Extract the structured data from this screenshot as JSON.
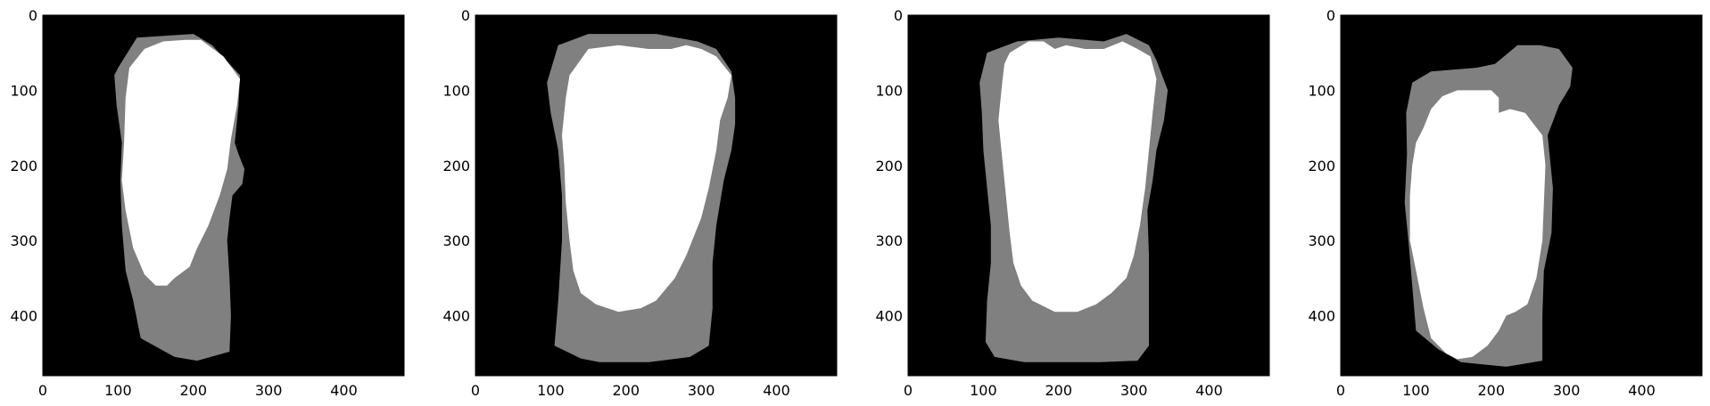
{
  "figure": {
    "panel_count": 4,
    "background_color": "#000000",
    "outer_mask_color": "#808080",
    "inner_mask_color": "#ffffff",
    "image_size": [
      480,
      480
    ]
  },
  "axes": {
    "x_ticks": [
      "0",
      "100",
      "200",
      "300",
      "400"
    ],
    "y_ticks": [
      "0",
      "100",
      "200",
      "300",
      "400"
    ],
    "x_range": [
      0,
      480
    ],
    "y_range": [
      480,
      0
    ]
  },
  "panels": [
    {
      "outer_polygon": [
        [
          100,
          70
        ],
        [
          125,
          30
        ],
        [
          200,
          25
        ],
        [
          225,
          40
        ],
        [
          262,
          80
        ],
        [
          260,
          120
        ],
        [
          255,
          170
        ],
        [
          260,
          185
        ],
        [
          268,
          205
        ],
        [
          265,
          225
        ],
        [
          252,
          240
        ],
        [
          248,
          270
        ],
        [
          245,
          300
        ],
        [
          248,
          350
        ],
        [
          250,
          400
        ],
        [
          248,
          448
        ],
        [
          205,
          460
        ],
        [
          175,
          455
        ],
        [
          130,
          430
        ],
        [
          120,
          380
        ],
        [
          110,
          340
        ],
        [
          105,
          280
        ],
        [
          103,
          220
        ],
        [
          105,
          170
        ],
        [
          98,
          120
        ],
        [
          95,
          80
        ]
      ],
      "inner_polygon": [
        [
          135,
          45
        ],
        [
          160,
          35
        ],
        [
          190,
          33
        ],
        [
          210,
          33
        ],
        [
          240,
          55
        ],
        [
          262,
          85
        ],
        [
          258,
          120
        ],
        [
          250,
          165
        ],
        [
          245,
          205
        ],
        [
          235,
          240
        ],
        [
          220,
          280
        ],
        [
          205,
          310
        ],
        [
          195,
          335
        ],
        [
          175,
          350
        ],
        [
          165,
          360
        ],
        [
          150,
          360
        ],
        [
          135,
          345
        ],
        [
          120,
          310
        ],
        [
          110,
          260
        ],
        [
          105,
          220
        ],
        [
          108,
          170
        ],
        [
          110,
          110
        ],
        [
          115,
          70
        ]
      ]
    },
    {
      "outer_polygon": [
        [
          110,
          40
        ],
        [
          150,
          25
        ],
        [
          240,
          25
        ],
        [
          295,
          35
        ],
        [
          320,
          45
        ],
        [
          340,
          75
        ],
        [
          345,
          110
        ],
        [
          345,
          145
        ],
        [
          340,
          180
        ],
        [
          330,
          220
        ],
        [
          320,
          280
        ],
        [
          315,
          330
        ],
        [
          315,
          390
        ],
        [
          310,
          440
        ],
        [
          285,
          455
        ],
        [
          230,
          462
        ],
        [
          165,
          462
        ],
        [
          140,
          457
        ],
        [
          105,
          440
        ],
        [
          110,
          380
        ],
        [
          115,
          300
        ],
        [
          115,
          240
        ],
        [
          110,
          180
        ],
        [
          100,
          130
        ],
        [
          95,
          90
        ]
      ],
      "inner_polygon": [
        [
          150,
          45
        ],
        [
          190,
          40
        ],
        [
          230,
          45
        ],
        [
          260,
          45
        ],
        [
          280,
          40
        ],
        [
          300,
          45
        ],
        [
          320,
          55
        ],
        [
          340,
          80
        ],
        [
          335,
          110
        ],
        [
          325,
          140
        ],
        [
          320,
          180
        ],
        [
          310,
          230
        ],
        [
          300,
          270
        ],
        [
          280,
          320
        ],
        [
          265,
          350
        ],
        [
          240,
          380
        ],
        [
          220,
          390
        ],
        [
          190,
          395
        ],
        [
          160,
          385
        ],
        [
          140,
          370
        ],
        [
          130,
          340
        ],
        [
          125,
          300
        ],
        [
          120,
          250
        ],
        [
          118,
          200
        ],
        [
          115,
          160
        ],
        [
          120,
          110
        ],
        [
          125,
          80
        ]
      ]
    },
    {
      "outer_polygon": [
        [
          105,
          50
        ],
        [
          145,
          35
        ],
        [
          200,
          30
        ],
        [
          260,
          35
        ],
        [
          290,
          25
        ],
        [
          320,
          40
        ],
        [
          330,
          60
        ],
        [
          345,
          100
        ],
        [
          340,
          140
        ],
        [
          330,
          180
        ],
        [
          325,
          220
        ],
        [
          318,
          260
        ],
        [
          320,
          320
        ],
        [
          320,
          390
        ],
        [
          320,
          440
        ],
        [
          305,
          460
        ],
        [
          255,
          462
        ],
        [
          210,
          462
        ],
        [
          155,
          462
        ],
        [
          115,
          455
        ],
        [
          103,
          435
        ],
        [
          105,
          380
        ],
        [
          110,
          330
        ],
        [
          110,
          280
        ],
        [
          105,
          230
        ],
        [
          100,
          180
        ],
        [
          98,
          130
        ],
        [
          95,
          90
        ]
      ],
      "inner_polygon": [
        [
          135,
          50
        ],
        [
          160,
          35
        ],
        [
          180,
          35
        ],
        [
          195,
          45
        ],
        [
          210,
          40
        ],
        [
          235,
          45
        ],
        [
          260,
          45
        ],
        [
          285,
          35
        ],
        [
          305,
          45
        ],
        [
          322,
          55
        ],
        [
          330,
          85
        ],
        [
          325,
          130
        ],
        [
          320,
          180
        ],
        [
          315,
          230
        ],
        [
          308,
          280
        ],
        [
          300,
          320
        ],
        [
          290,
          350
        ],
        [
          270,
          370
        ],
        [
          250,
          385
        ],
        [
          225,
          395
        ],
        [
          195,
          395
        ],
        [
          165,
          380
        ],
        [
          150,
          360
        ],
        [
          140,
          330
        ],
        [
          135,
          290
        ],
        [
          130,
          240
        ],
        [
          125,
          190
        ],
        [
          120,
          140
        ],
        [
          125,
          90
        ],
        [
          128,
          65
        ]
      ]
    },
    {
      "outer_polygon": [
        [
          95,
          90
        ],
        [
          120,
          75
        ],
        [
          180,
          70
        ],
        [
          205,
          65
        ],
        [
          235,
          40
        ],
        [
          265,
          40
        ],
        [
          290,
          45
        ],
        [
          308,
          70
        ],
        [
          305,
          95
        ],
        [
          290,
          120
        ],
        [
          275,
          160
        ],
        [
          282,
          230
        ],
        [
          280,
          290
        ],
        [
          270,
          340
        ],
        [
          268,
          400
        ],
        [
          268,
          460
        ],
        [
          220,
          468
        ],
        [
          160,
          462
        ],
        [
          130,
          445
        ],
        [
          100,
          420
        ],
        [
          95,
          360
        ],
        [
          90,
          300
        ],
        [
          85,
          250
        ],
        [
          88,
          185
        ],
        [
          87,
          130
        ]
      ],
      "inner_polygon": [
        [
          120,
          125
        ],
        [
          135,
          108
        ],
        [
          155,
          100
        ],
        [
          175,
          100
        ],
        [
          200,
          100
        ],
        [
          210,
          110
        ],
        [
          210,
          130
        ],
        [
          225,
          125
        ],
        [
          245,
          130
        ],
        [
          268,
          160
        ],
        [
          272,
          200
        ],
        [
          270,
          250
        ],
        [
          268,
          300
        ],
        [
          260,
          350
        ],
        [
          248,
          385
        ],
        [
          232,
          395
        ],
        [
          220,
          400
        ],
        [
          210,
          420
        ],
        [
          195,
          440
        ],
        [
          175,
          455
        ],
        [
          155,
          458
        ],
        [
          140,
          450
        ],
        [
          120,
          430
        ],
        [
          110,
          390
        ],
        [
          100,
          340
        ],
        [
          92,
          300
        ],
        [
          92,
          240
        ],
        [
          95,
          200
        ],
        [
          100,
          170
        ],
        [
          110,
          150
        ]
      ]
    }
  ]
}
